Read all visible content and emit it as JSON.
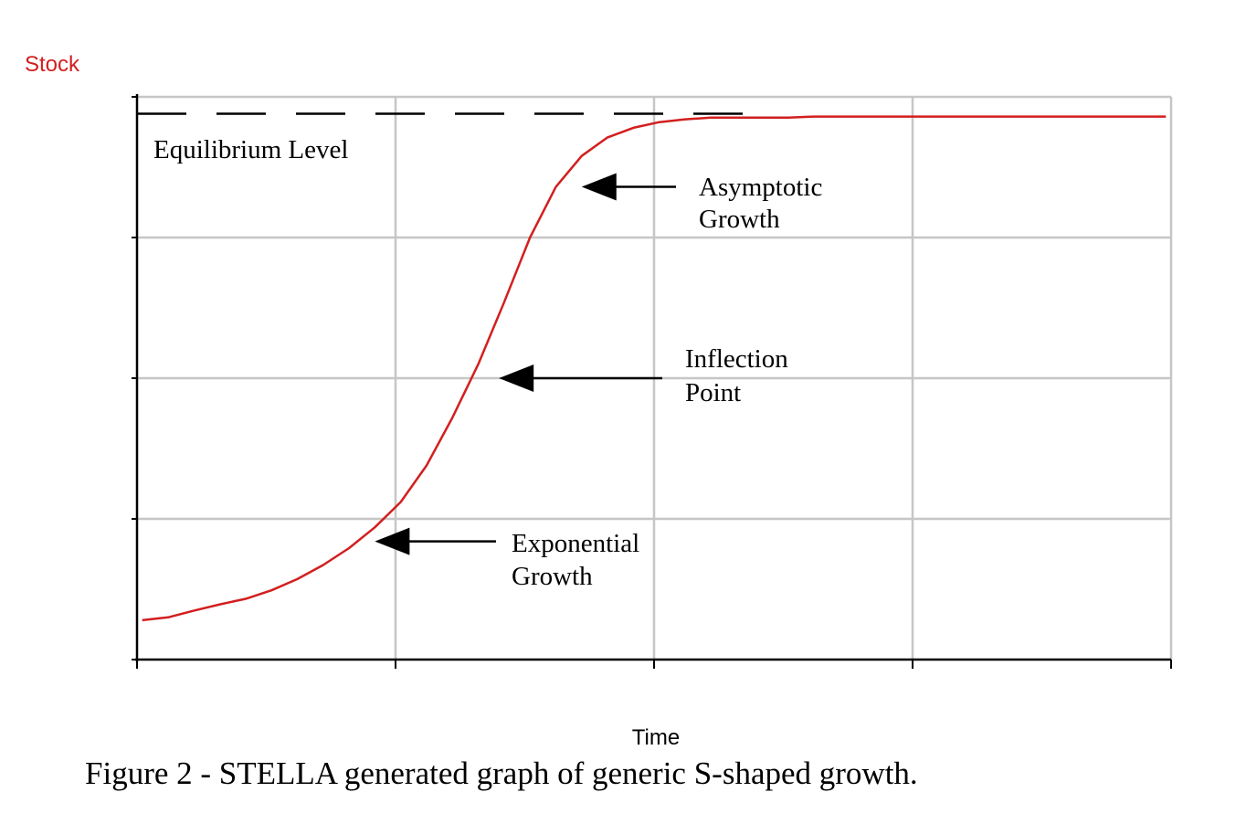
{
  "chart_data": {
    "type": "line",
    "title": "",
    "ylabel": "Stock",
    "xlabel": "Time",
    "caption": "Figure 2 - STELLA generated graph of generic S-shaped growth.",
    "xlim": [
      0,
      1
    ],
    "ylim": [
      0,
      1
    ],
    "grid": true,
    "x_tick_count": 5,
    "y_tick_count": 5,
    "tick_labels_shown": false,
    "line_color": "#d21f1f",
    "equilibrium": {
      "label": "Equilibrium Level",
      "value": 0.97,
      "style": "dashed",
      "color": "#000000"
    },
    "series": [
      {
        "color": "#d21f1f",
        "x": [
          0.005,
          0.03,
          0.055,
          0.08,
          0.105,
          0.13,
          0.155,
          0.18,
          0.205,
          0.23,
          0.255,
          0.28,
          0.305,
          0.33,
          0.355,
          0.38,
          0.405,
          0.43,
          0.455,
          0.48,
          0.505,
          0.53,
          0.555,
          0.58,
          0.605,
          0.63,
          0.655,
          0.68,
          0.705,
          0.73,
          0.755,
          0.78,
          0.805,
          0.83,
          0.855,
          0.88,
          0.905,
          0.93,
          0.955,
          0.98,
          0.995
        ],
        "values": [
          0.07,
          0.075,
          0.087,
          0.098,
          0.108,
          0.123,
          0.143,
          0.168,
          0.198,
          0.235,
          0.28,
          0.345,
          0.43,
          0.525,
          0.635,
          0.75,
          0.84,
          0.895,
          0.928,
          0.945,
          0.955,
          0.96,
          0.963,
          0.963,
          0.963,
          0.963,
          0.965,
          0.965,
          0.965,
          0.965,
          0.965,
          0.965,
          0.965,
          0.965,
          0.965,
          0.965,
          0.965,
          0.965,
          0.965,
          0.965,
          0.965
        ]
      }
    ],
    "annotations": [
      {
        "name": "asymptotic-growth",
        "lines": [
          "Asymptotic",
          "Growth"
        ],
        "x": 0.43,
        "y": 0.84
      },
      {
        "name": "inflection-point",
        "lines": [
          "Inflection",
          "Point"
        ],
        "x": 0.35,
        "y": 0.5
      },
      {
        "name": "exponential-growth",
        "lines": [
          "Exponential",
          "Growth"
        ],
        "x": 0.23,
        "y": 0.21
      }
    ]
  }
}
